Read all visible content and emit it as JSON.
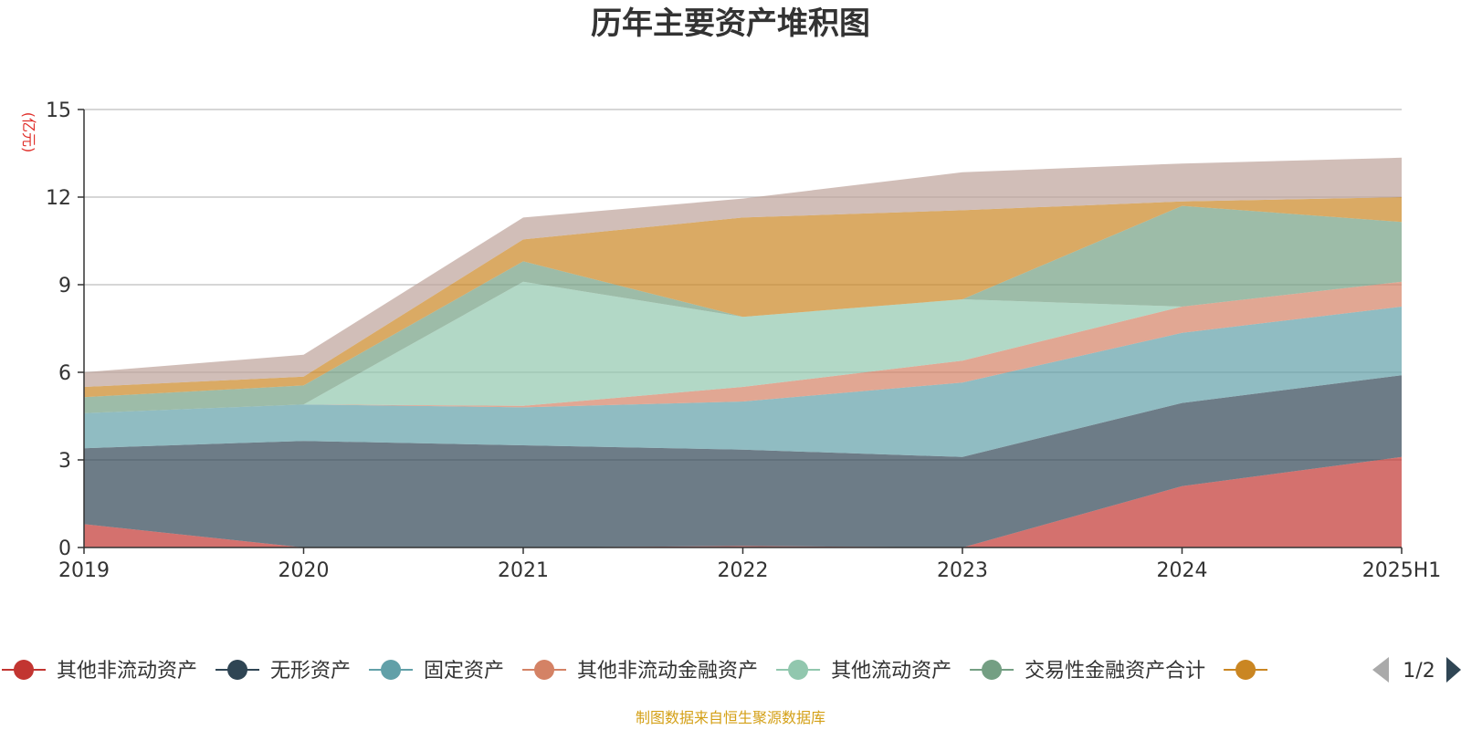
{
  "chart_data": {
    "type": "area",
    "stacked": true,
    "title": "历年主要资产堆积图",
    "ylabel": "(亿元)",
    "categories": [
      "2019",
      "2020",
      "2021",
      "2022",
      "2023",
      "2024",
      "2025H1"
    ],
    "ylim": [
      0,
      15
    ],
    "yticks": [
      0,
      3,
      6,
      9,
      12,
      15
    ],
    "grid": true,
    "series": [
      {
        "name": "其他非流动资产",
        "color": "#c23531",
        "values": [
          0.8,
          0.0,
          0.0,
          0.05,
          0.0,
          2.1,
          3.1
        ]
      },
      {
        "name": "无形资产",
        "color": "#2f4554",
        "values": [
          2.6,
          3.65,
          3.5,
          3.3,
          3.1,
          2.85,
          2.8
        ]
      },
      {
        "name": "固定资产",
        "color": "#61a0a8",
        "values": [
          1.2,
          1.25,
          1.3,
          1.65,
          2.55,
          2.4,
          2.35
        ]
      },
      {
        "name": "其他非流动金融资产",
        "color": "#d48265",
        "values": [
          0.0,
          0.0,
          0.05,
          0.5,
          0.75,
          0.9,
          0.85
        ]
      },
      {
        "name": "其他流动资产",
        "color": "#91c7ae",
        "values": [
          0.0,
          0.0,
          4.25,
          2.4,
          2.1,
          0.0,
          0.0
        ]
      },
      {
        "name": "交易性金融资产合计",
        "color": "#749f83",
        "values": [
          0.55,
          0.65,
          0.7,
          0.0,
          0.0,
          3.45,
          2.05
        ]
      },
      {
        "name": "",
        "color": "#ca8622",
        "values": [
          0.35,
          0.3,
          0.75,
          3.4,
          3.05,
          0.15,
          0.85
        ]
      },
      {
        "name": "",
        "color": "#bda29a",
        "values": [
          0.5,
          0.75,
          0.75,
          0.65,
          1.3,
          1.3,
          1.35
        ]
      }
    ],
    "legend_position": "bottom"
  },
  "legend": {
    "page": "1/2",
    "visible_count": 7
  },
  "icons": {
    "prev": "arrow-left-icon",
    "next": "arrow-right-icon"
  },
  "source_text": "制图数据来自恒生聚源数据库",
  "source_color": "#d4a017"
}
